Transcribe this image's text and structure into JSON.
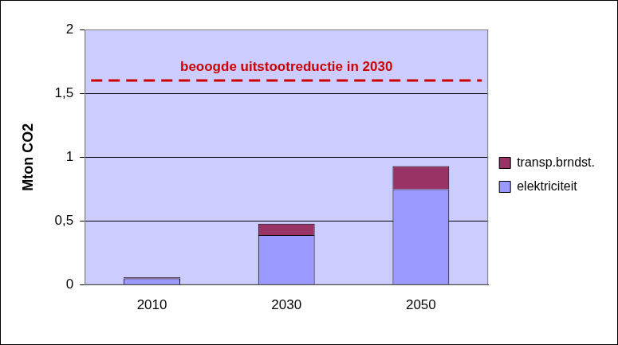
{
  "chart_data": {
    "type": "bar",
    "stacked": true,
    "grid": true,
    "legend": "right",
    "y_label": "Mton CO2",
    "categories": [
      "2010",
      "2030",
      "2050"
    ],
    "series": [
      {
        "name": "elektriciteit",
        "color": "#9999ff",
        "values": [
          0.05,
          0.39,
          0.75
        ]
      },
      {
        "name": "transp.brndst.",
        "color": "#993366",
        "values": [
          0.01,
          0.09,
          0.18
        ]
      }
    ],
    "ylim": [
      0,
      2
    ],
    "yticks": [
      0,
      {
        "value": 0.5,
        "label": "0,5"
      },
      1,
      {
        "value": 1.5,
        "label": "1,5"
      },
      2
    ],
    "annotations": [
      {
        "text": "beoogde uitstootreductie in 2030",
        "y": 1.6,
        "color": "#cc0000",
        "line_style": "dashed"
      }
    ]
  }
}
